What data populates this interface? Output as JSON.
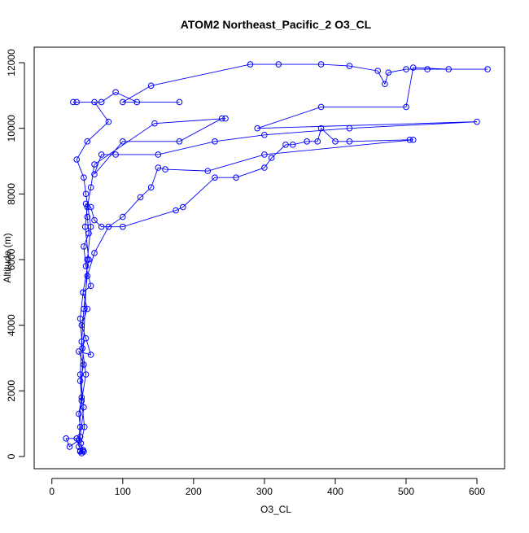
{
  "chart_data": {
    "type": "line",
    "title": "ATOM2 Northeast_Pacific_2 O3_CL",
    "x_label": "O3_CL",
    "y_label": "Altitude (m)",
    "color": "#0000ff",
    "markers": "open-circle",
    "xlim": [
      -25,
      639
    ],
    "ylim": [
      -372,
      12472
    ],
    "xticks": [
      0,
      100,
      200,
      300,
      400,
      500,
      600
    ],
    "yticks": [
      0,
      2000,
      4000,
      6000,
      8000,
      10000,
      12000
    ],
    "x": [
      40,
      45,
      42,
      35,
      20,
      25,
      38,
      40,
      38,
      42,
      40,
      45,
      38,
      55,
      48,
      42,
      50,
      44,
      55,
      48,
      45,
      52,
      50,
      48,
      55,
      60,
      70,
      100,
      175,
      185,
      230,
      260,
      300,
      310,
      330,
      340,
      360,
      375,
      380,
      400,
      420,
      505,
      510,
      300,
      220,
      160,
      150,
      140,
      125,
      100,
      80,
      60,
      50,
      45,
      42,
      40,
      45,
      40,
      38,
      50,
      55,
      48,
      45,
      35,
      50,
      80,
      60,
      35,
      30,
      70,
      90,
      120,
      180,
      100,
      140,
      280,
      320,
      380,
      420,
      460,
      470,
      475,
      500,
      530,
      615,
      560,
      510,
      500,
      380,
      290,
      600,
      420,
      300,
      230,
      150,
      90,
      70,
      60,
      100,
      180,
      240,
      245,
      145,
      60,
      55,
      50,
      47,
      52,
      44,
      40,
      43,
      48,
      42,
      46,
      41,
      44,
      40,
      43
    ],
    "values": [
      150,
      150,
      100,
      550,
      550,
      300,
      500,
      900,
      1300,
      1800,
      2300,
      2800,
      3200,
      3100,
      3600,
      4000,
      4500,
      5000,
      5200,
      5800,
      6400,
      6800,
      7300,
      7700,
      7600,
      7200,
      7000,
      7000,
      7500,
      7600,
      8500,
      8500,
      8800,
      9100,
      9500,
      9500,
      9600,
      9600,
      10000,
      9600,
      9600,
      9650,
      9650,
      9200,
      8700,
      8750,
      8800,
      8200,
      7900,
      7300,
      7000,
      6200,
      5500,
      4500,
      3500,
      2500,
      1500,
      600,
      300,
      6000,
      7000,
      8000,
      8500,
      9050,
      9600,
      10200,
      10800,
      10800,
      10800,
      10800,
      11100,
      10800,
      10800,
      10800,
      11300,
      11950,
      11950,
      11950,
      11900,
      11750,
      11350,
      11700,
      11800,
      11800,
      11800,
      11800,
      11850,
      10650,
      10650,
      10000,
      10200,
      10000,
      9800,
      9600,
      9200,
      9200,
      9200,
      8600,
      9600,
      9600,
      10300,
      10300,
      10150,
      8900,
      8200,
      7600,
      7000,
      6000,
      5000,
      4200,
      3300,
      2500,
      1700,
      900,
      400,
      200,
      180,
      160
    ]
  }
}
